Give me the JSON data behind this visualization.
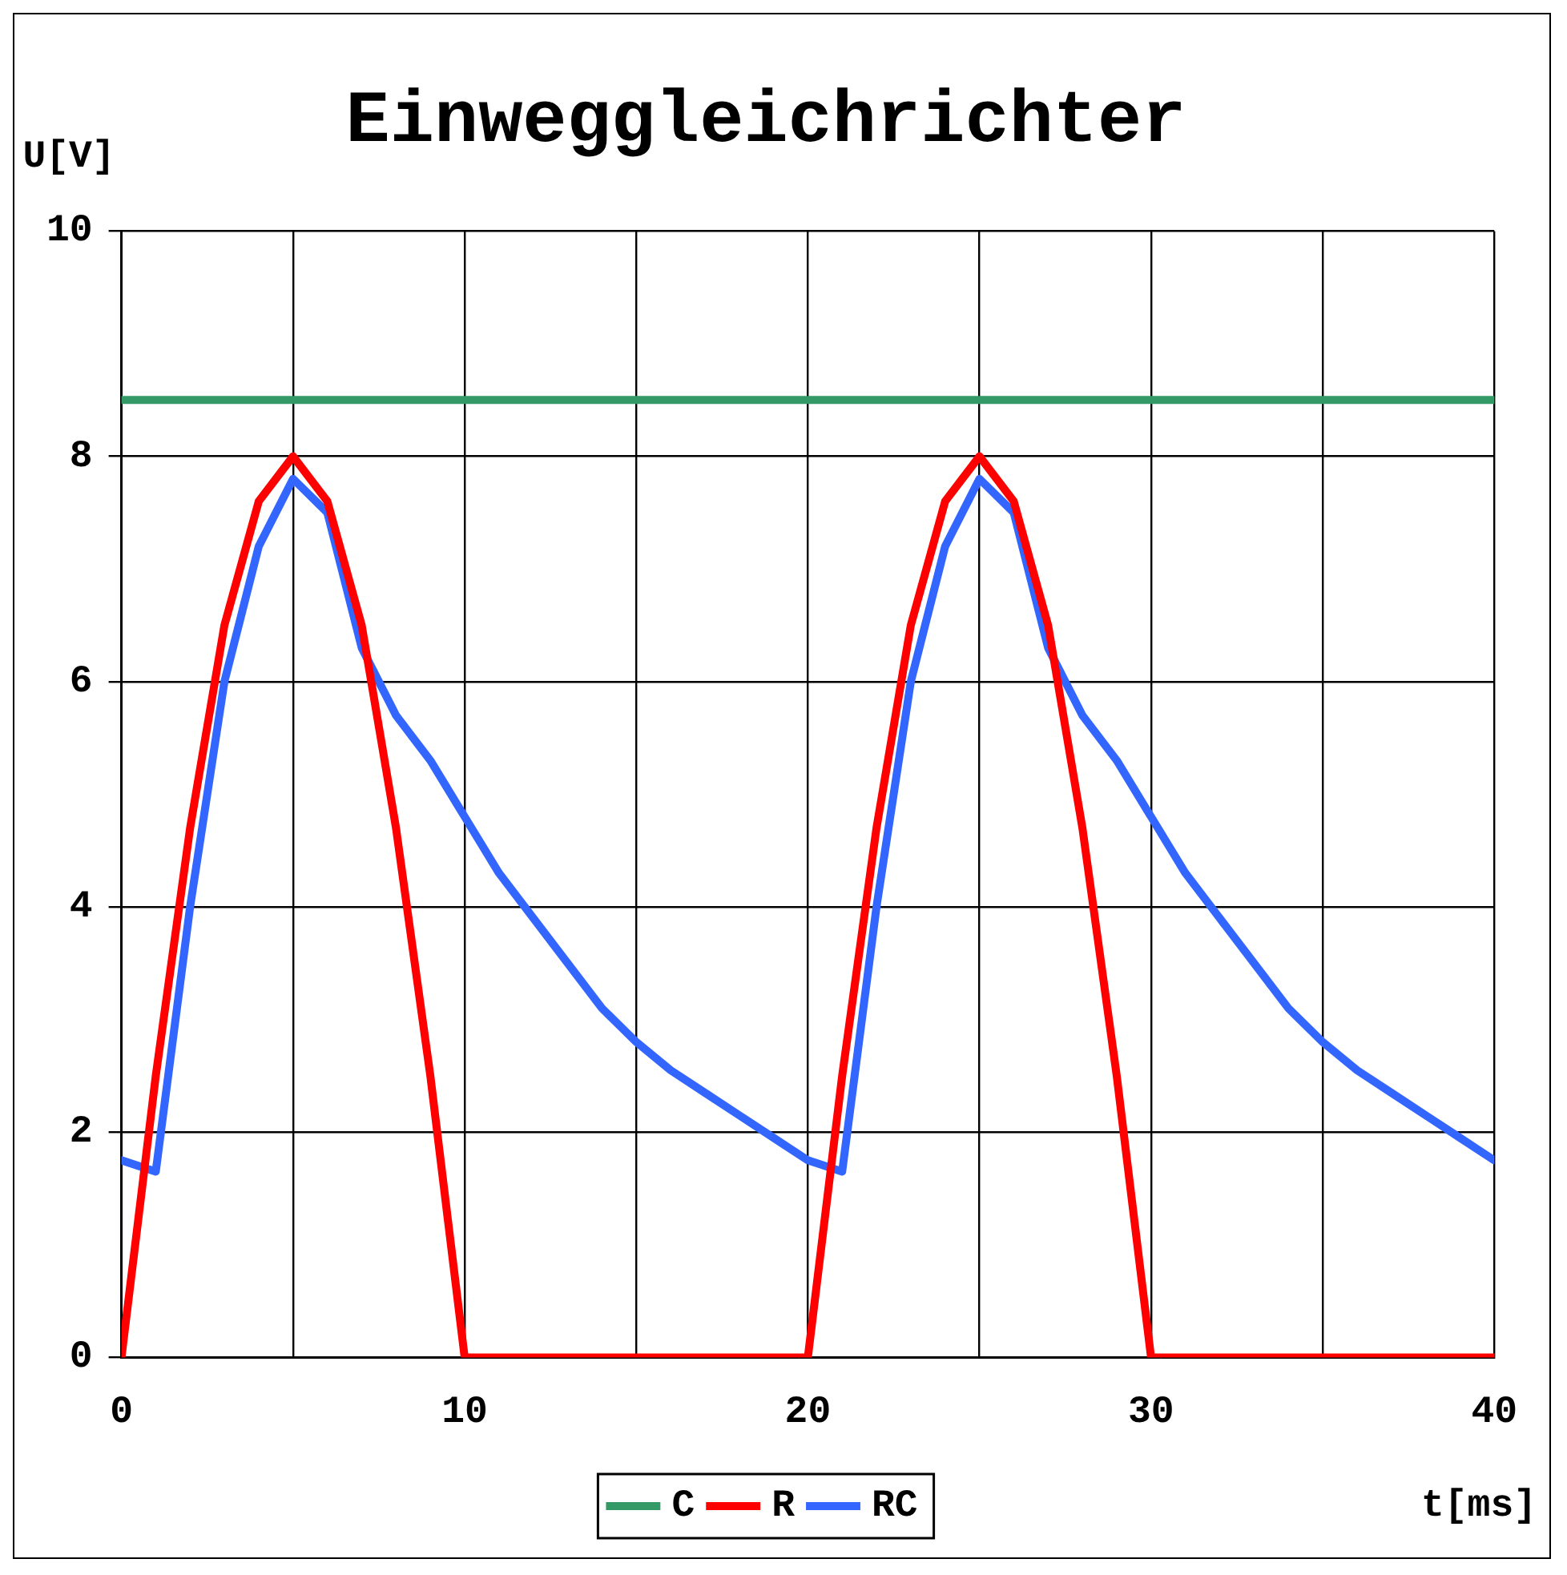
{
  "chart_data": {
    "type": "line",
    "title": "Einweggleichrichter",
    "xlabel": "t[ms]",
    "ylabel": "U[V]",
    "xlim": [
      0,
      40
    ],
    "xticks": [
      0,
      {
        "value": 5,
        "label": null
      },
      10,
      {
        "value": 15,
        "label": null
      },
      20,
      {
        "value": 25,
        "label": null
      },
      30,
      {
        "value": 35,
        "label": null
      },
      40
    ],
    "ylim": [
      0,
      10
    ],
    "yticks": [
      0,
      2,
      4,
      6,
      8,
      10
    ],
    "grid": true,
    "legend": "bottom",
    "marker": "none",
    "line_style": "solid",
    "series": [
      {
        "name": "C",
        "color": "#339966",
        "x": [
          0,
          40
        ],
        "values": [
          8.5,
          8.5
        ]
      },
      {
        "name": "R",
        "color": "#ff0000",
        "x": [
          0,
          1,
          2,
          3,
          4,
          5,
          6,
          7,
          8,
          9,
          10,
          20,
          21,
          22,
          23,
          24,
          25,
          26,
          27,
          28,
          29,
          30,
          40
        ],
        "values": [
          0,
          2.5,
          4.7,
          6.5,
          7.6,
          8,
          7.6,
          6.5,
          4.7,
          2.5,
          0,
          0,
          2.5,
          4.7,
          6.5,
          7.6,
          8,
          7.6,
          6.5,
          4.7,
          2.5,
          0,
          0
        ]
      },
      {
        "name": "RC",
        "color": "#3366ff",
        "x": [
          0,
          1,
          2,
          3,
          4,
          5,
          6,
          7,
          8,
          9,
          10,
          11,
          12,
          13,
          14,
          15,
          16,
          17,
          18,
          19,
          20,
          21,
          22,
          23,
          24,
          25,
          26,
          27,
          28,
          29,
          30,
          31,
          32,
          33,
          34,
          35,
          36,
          37,
          38,
          39,
          40
        ],
        "values": [
          1.75,
          1.65,
          4.0,
          6.0,
          7.2,
          7.8,
          7.5,
          6.3,
          5.7,
          5.3,
          4.8,
          4.3,
          3.9,
          3.5,
          3.1,
          2.8,
          2.55,
          2.35,
          2.15,
          1.95,
          1.75,
          1.65,
          4.0,
          6.0,
          7.2,
          7.8,
          7.5,
          6.3,
          5.7,
          5.3,
          4.8,
          4.3,
          3.9,
          3.5,
          3.1,
          2.8,
          2.55,
          2.35,
          2.15,
          1.95,
          1.75
        ]
      }
    ]
  }
}
